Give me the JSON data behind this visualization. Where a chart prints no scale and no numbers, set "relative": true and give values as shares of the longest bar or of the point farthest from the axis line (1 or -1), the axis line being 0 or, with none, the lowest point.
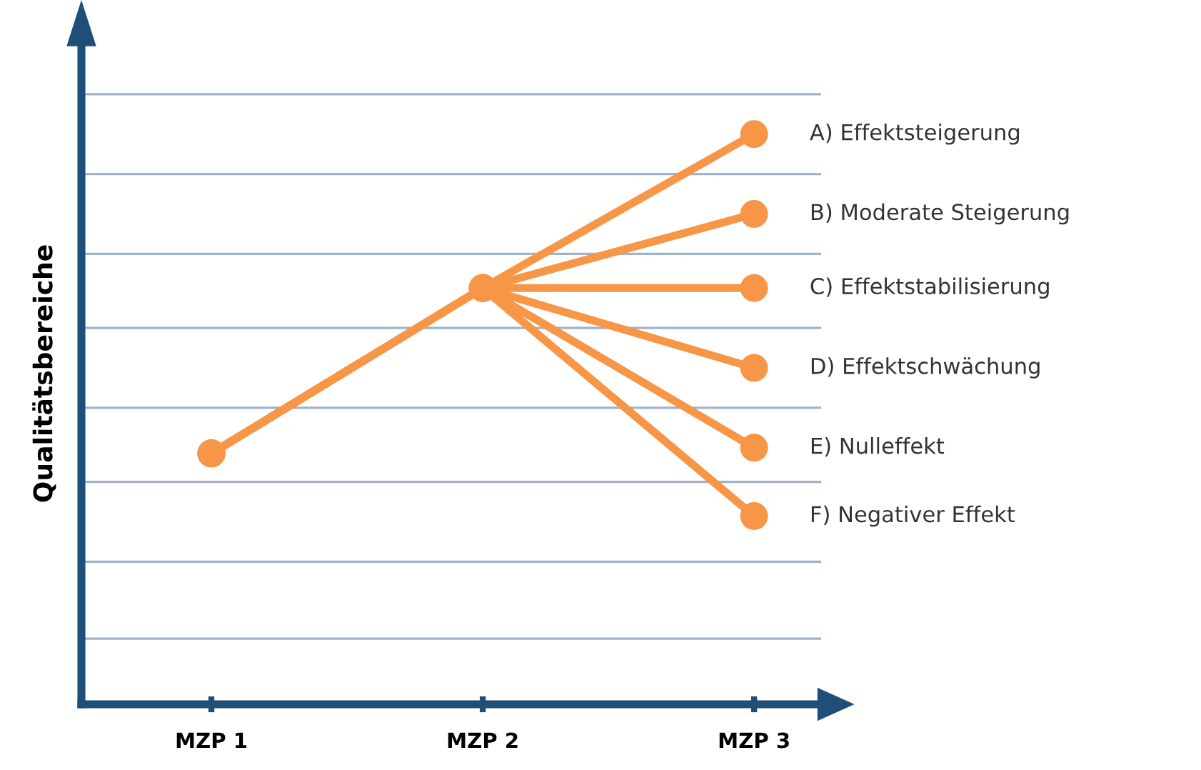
{
  "chart_data": {
    "type": "line",
    "relative": true,
    "ylabel": "Qualitätsbereiche",
    "categories": [
      "MZP 1",
      "MZP 2",
      "MZP 3"
    ],
    "series": [
      {
        "name": "A) Effektsteigerung",
        "color": "#f79646",
        "values": [
          0.44,
          0.73,
          1.0
        ]
      },
      {
        "name": "B) Moderate Steigerung",
        "color": "#f79646",
        "values": [
          0.44,
          0.73,
          0.86
        ]
      },
      {
        "name": "C) Effektstabilisierung",
        "color": "#f79646",
        "values": [
          0.44,
          0.73,
          0.73
        ]
      },
      {
        "name": "D) Effektschwächung",
        "color": "#f79646",
        "values": [
          0.44,
          0.73,
          0.59
        ]
      },
      {
        "name": "E) Nulleffekt",
        "color": "#f79646",
        "values": [
          0.44,
          0.73,
          0.45
        ]
      },
      {
        "name": "F) Negativer Effekt",
        "color": "#f79646",
        "values": [
          0.44,
          0.73,
          0.33
        ]
      }
    ],
    "ref_lines": [
      {
        "axis": "y",
        "value": 0.115,
        "color": "#9fb3cc"
      },
      {
        "axis": "y",
        "value": 0.25,
        "color": "#9fb3cc"
      },
      {
        "axis": "y",
        "value": 0.39,
        "color": "#9fb3cc"
      },
      {
        "axis": "y",
        "value": 0.52,
        "color": "#9fb3cc"
      },
      {
        "axis": "y",
        "value": 0.66,
        "color": "#9fb3cc"
      },
      {
        "axis": "y",
        "value": 0.79,
        "color": "#9fb3cc"
      },
      {
        "axis": "y",
        "value": 0.93,
        "color": "#9fb3cc"
      },
      {
        "axis": "y",
        "value": 1.07,
        "color": "#9fb3cc"
      }
    ],
    "marker": "circle",
    "line_style": "solid",
    "legend": false
  }
}
